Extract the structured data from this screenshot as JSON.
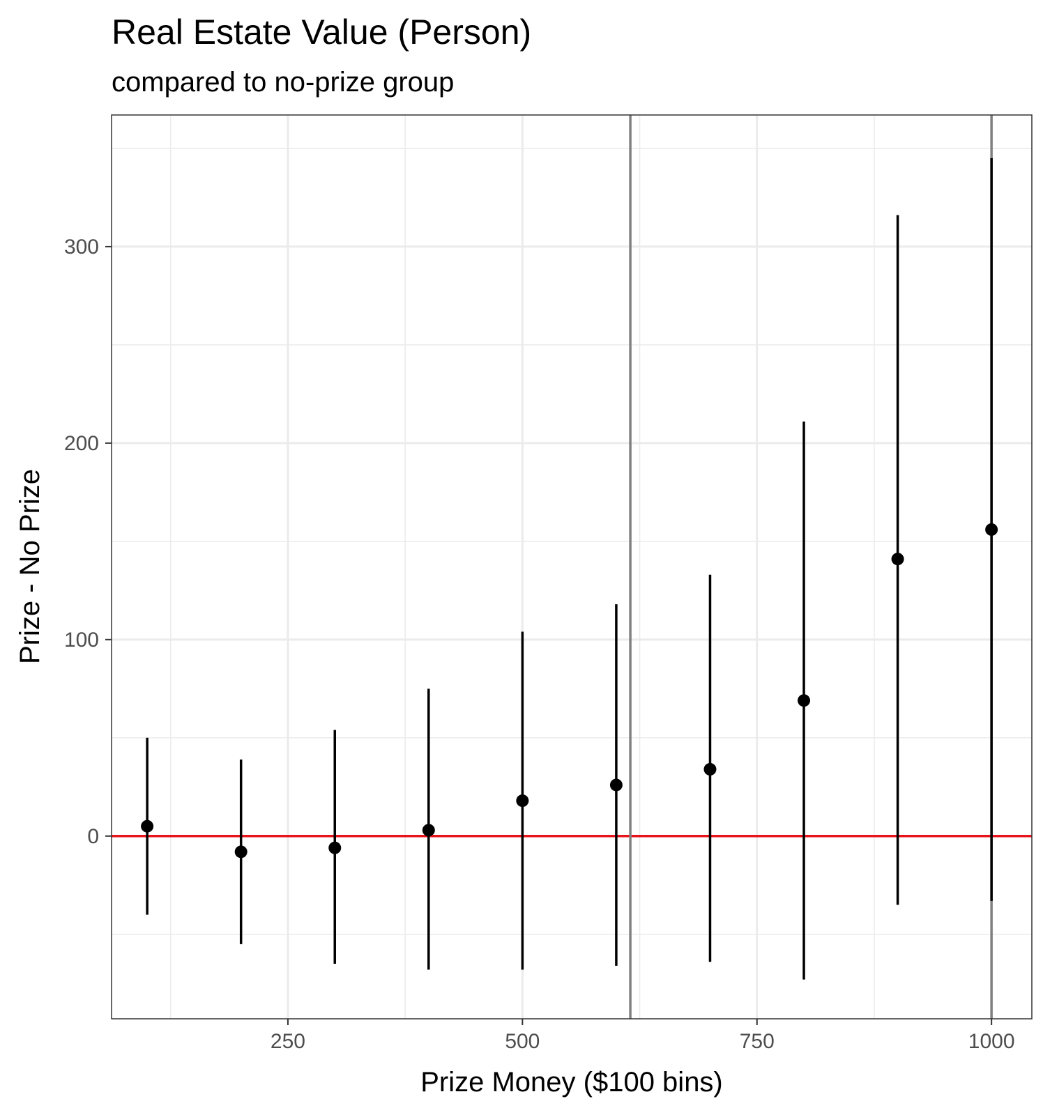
{
  "chart_data": {
    "type": "scatter",
    "title": "Real Estate Value (Person)",
    "subtitle": "compared to no-prize group",
    "xlabel": "Prize Money ($100 bins)",
    "ylabel": "Prize - No Prize",
    "xlim": [
      62,
      1043
    ],
    "ylim": [
      -93,
      367
    ],
    "x_ticks": [
      250,
      500,
      750,
      1000
    ],
    "y_ticks": [
      0,
      100,
      200,
      300
    ],
    "grid": true,
    "reference_lines": {
      "horizontal_y": 0,
      "horizontal_color": "#e8141c",
      "vertical_x": [
        615,
        1000
      ],
      "vertical_color": "#808080"
    },
    "series": [
      {
        "x": [
          100,
          200,
          300,
          400,
          500,
          600,
          700,
          800,
          900,
          1000
        ],
        "y": [
          5,
          -8,
          -6,
          3,
          18,
          26,
          34,
          69,
          141,
          156
        ],
        "y_low": [
          -40,
          -55,
          -65,
          -68,
          -68,
          -66,
          -64,
          -73,
          -35,
          -33
        ],
        "y_high": [
          50,
          39,
          54,
          75,
          104,
          118,
          133,
          211,
          316,
          345
        ]
      }
    ]
  }
}
